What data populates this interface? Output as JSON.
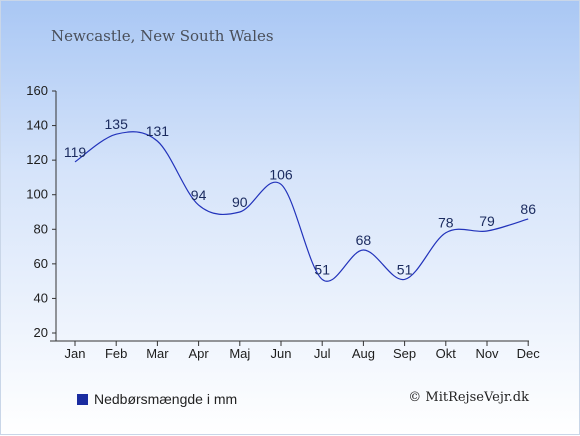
{
  "header": {
    "title": "Newcastle, New South Wales"
  },
  "chart_data": {
    "type": "line",
    "title": "Newcastle, New South Wales",
    "xlabel": "",
    "ylabel": "",
    "categories": [
      "Jan",
      "Feb",
      "Mar",
      "Apr",
      "Maj",
      "Jun",
      "Jul",
      "Aug",
      "Sep",
      "Okt",
      "Nov",
      "Dec"
    ],
    "series": [
      {
        "name": "Nedbørsmængde i mm",
        "values": [
          119,
          135,
          131,
          94,
          90,
          106,
          51,
          68,
          51,
          78,
          79,
          86
        ],
        "color": "#2233bb"
      }
    ],
    "ylim": [
      20,
      160
    ],
    "yticks": [
      20,
      40,
      60,
      80,
      100,
      120,
      140,
      160
    ],
    "grid": false,
    "legend_position": "bottom-left",
    "data_labels": true
  },
  "legend": {
    "label": "Nedbørsmængde i mm",
    "color": "#1a2ca0"
  },
  "credit": "© MitRejseVejr.dk"
}
